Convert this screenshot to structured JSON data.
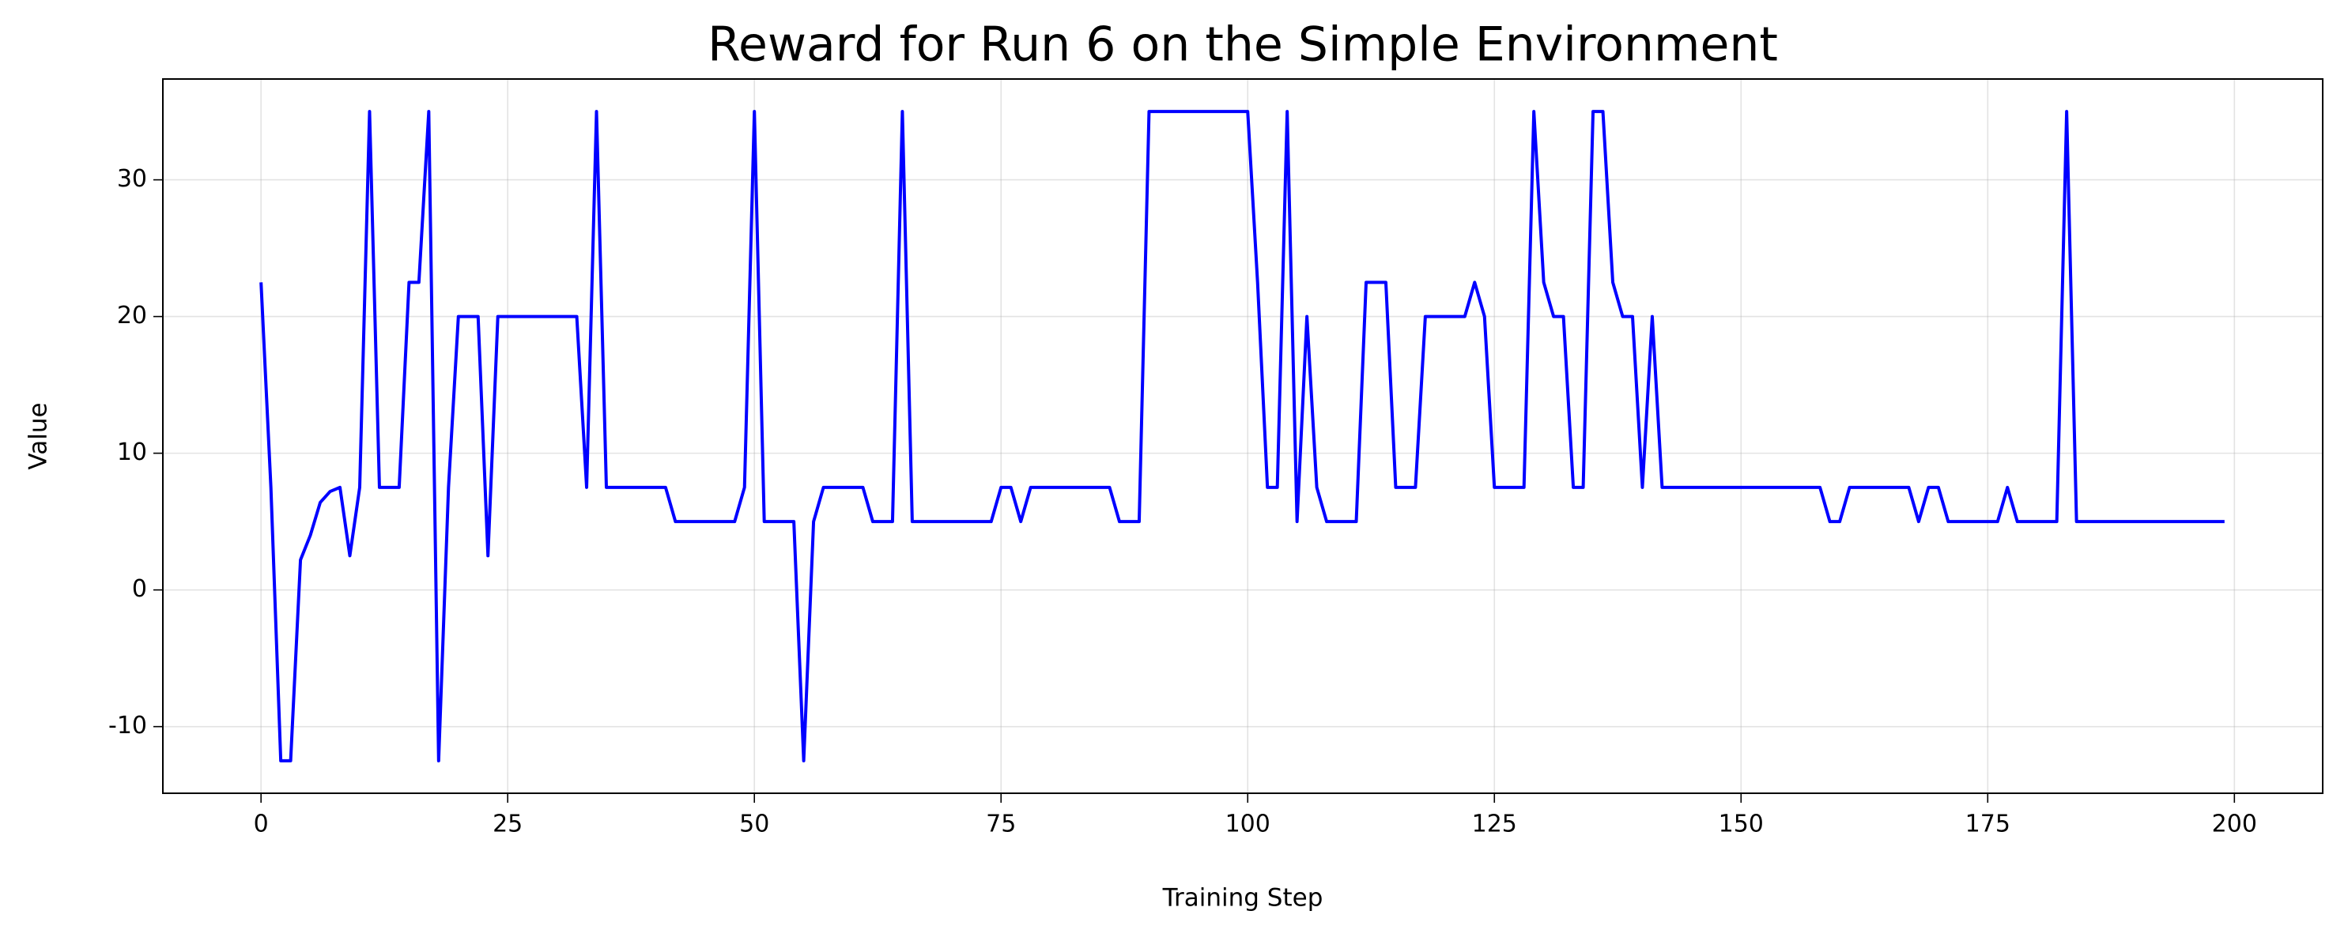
{
  "chart_data": {
    "type": "line",
    "title": "Reward for Run 6 on the Simple Environment",
    "x_label": "Training Step",
    "y_label": "Value",
    "x": [
      0,
      1,
      2,
      3,
      4,
      5,
      6,
      7,
      8,
      9,
      10,
      11,
      12,
      13,
      14,
      15,
      16,
      17,
      18,
      19,
      20,
      21,
      22,
      23,
      24,
      25,
      26,
      27,
      28,
      29,
      30,
      31,
      32,
      33,
      34,
      35,
      36,
      37,
      38,
      39,
      40,
      41,
      42,
      43,
      44,
      45,
      46,
      47,
      48,
      49,
      50,
      51,
      52,
      53,
      54,
      55,
      56,
      57,
      58,
      59,
      60,
      61,
      62,
      63,
      64,
      65,
      66,
      67,
      68,
      69,
      70,
      71,
      72,
      73,
      74,
      75,
      76,
      77,
      78,
      79,
      80,
      81,
      82,
      83,
      84,
      85,
      86,
      87,
      88,
      89,
      90,
      91,
      92,
      93,
      94,
      95,
      96,
      97,
      98,
      99,
      100,
      101,
      102,
      103,
      104,
      105,
      106,
      107,
      108,
      109,
      110,
      111,
      112,
      113,
      114,
      115,
      116,
      117,
      118,
      119,
      120,
      121,
      122,
      123,
      124,
      125,
      126,
      127,
      128,
      129,
      130,
      131,
      132,
      133,
      134,
      135,
      136,
      137,
      138,
      139,
      140,
      141,
      142,
      143,
      144,
      145,
      146,
      147,
      148,
      149,
      150,
      151,
      152,
      153,
      154,
      155,
      156,
      157,
      158,
      159,
      160,
      161,
      162,
      163,
      164,
      165,
      166,
      167,
      168,
      169,
      170,
      171,
      172,
      173,
      174,
      175,
      176,
      177,
      178,
      179,
      180,
      181,
      182,
      183,
      184,
      185,
      186,
      187,
      188,
      189,
      190,
      191,
      192,
      193,
      194,
      195,
      196,
      197,
      198,
      199
    ],
    "series": [
      {
        "name": "Reward",
        "color": "#0000ff",
        "values": [
          22.5,
          7.5,
          -12.5,
          -12.5,
          2.2,
          4,
          6.4,
          7.2,
          7.5,
          2.5,
          7.5,
          35,
          7.5,
          7.5,
          7.5,
          22.5,
          22.5,
          35,
          -12.5,
          7.5,
          20,
          20,
          20,
          2.5,
          20,
          20,
          20,
          20,
          20,
          20,
          20,
          20,
          20,
          7.5,
          35,
          7.5,
          7.5,
          7.5,
          7.5,
          7.5,
          7.5,
          7.5,
          5,
          5,
          5,
          5,
          5,
          5,
          5,
          7.5,
          35,
          5,
          5,
          5,
          5,
          -12.5,
          5,
          7.5,
          7.5,
          7.5,
          7.5,
          7.5,
          5,
          5,
          5,
          35,
          5,
          5,
          5,
          5,
          5,
          5,
          5,
          5,
          5,
          7.5,
          7.5,
          5,
          7.5,
          7.5,
          7.5,
          7.5,
          7.5,
          7.5,
          7.5,
          7.5,
          7.5,
          5,
          5,
          5,
          35,
          35,
          35,
          35,
          35,
          35,
          35,
          35,
          35,
          35,
          35,
          22.5,
          7.5,
          7.5,
          35,
          5,
          20,
          7.5,
          5,
          5,
          5,
          5,
          22.5,
          22.5,
          22.5,
          7.5,
          7.5,
          7.5,
          20,
          20,
          20,
          20,
          20,
          22.5,
          20,
          7.5,
          7.5,
          7.5,
          7.5,
          35,
          22.5,
          20,
          20,
          7.5,
          7.5,
          35,
          35,
          22.5,
          20,
          20,
          7.5,
          20,
          7.5,
          7.5,
          7.5,
          7.5,
          7.5,
          7.5,
          7.5,
          7.5,
          7.5,
          7.5,
          7.5,
          7.5,
          7.5,
          7.5,
          7.5,
          7.5,
          7.5,
          5,
          5,
          7.5,
          7.5,
          7.5,
          7.5,
          7.5,
          7.5,
          7.5,
          5,
          7.5,
          7.5,
          5,
          5,
          5,
          5,
          5,
          5,
          7.5,
          5,
          5,
          5,
          5,
          5,
          35,
          5,
          5,
          5,
          5,
          5,
          5,
          5,
          5,
          5,
          5,
          5,
          5,
          5,
          5,
          5,
          5
        ]
      }
    ],
    "xlim": [
      -9.95,
      208.95
    ],
    "xticks": [
      0,
      25,
      50,
      75,
      100,
      125,
      150,
      175,
      200
    ],
    "ylim": [
      -14.875,
      37.375
    ],
    "yticks": [
      -10,
      0,
      10,
      20,
      30
    ],
    "grid": true
  }
}
